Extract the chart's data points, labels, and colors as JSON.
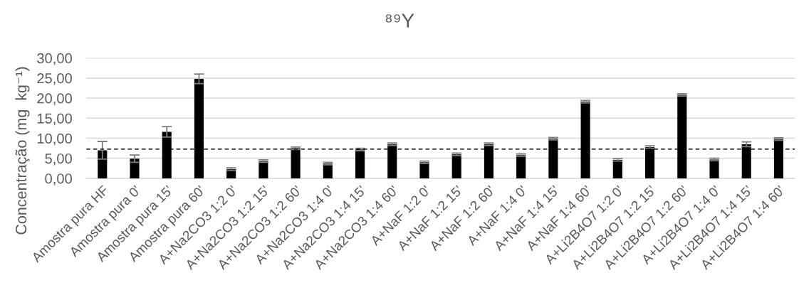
{
  "chart_data": {
    "type": "bar",
    "title": "⁸⁹Y",
    "ylabel": "Concentração (mg  kg⁻¹)",
    "categories": [
      "Amostra pura HF",
      "Amostra pura 0'",
      "Amostra pura 15'",
      "Amostra pura 60'",
      "A+Na2CO3 1:2 0'",
      "A+Na2CO3 1:2 15'",
      "A+Na2CO3 1:2 60'",
      "A+Na2CO3 1:4 0'",
      "A+Na2CO3 1:4 15'",
      "A+Na2CO3 1:4 60'",
      "A+NaF 1:2 0'",
      "A+NaF 1:2 15'",
      "A+NaF 1:2 60'",
      "A+NaF 1:4 0'",
      "A+NaF 1:4 15'",
      "A+NaF 1:4 60'",
      "A+Li2B4O7 1:2 0'",
      "A+Li2B4O7 1:2 15'",
      "A+Li2B4O7 1:2 60'",
      "A+Li2B4O7 1:4 0'",
      "A+Li2B4O7 1:4 15'",
      "A+Li2B4O7 1:4 60'"
    ],
    "values": [
      7.0,
      4.9,
      11.6,
      24.8,
      2.3,
      4.3,
      7.5,
      3.7,
      7.2,
      8.5,
      4.0,
      6.0,
      8.5,
      5.8,
      9.9,
      19.1,
      4.6,
      7.8,
      20.8,
      4.7,
      8.5,
      9.8
    ],
    "errors": [
      2.2,
      0.9,
      1.3,
      1.2,
      0.3,
      0.3,
      0.3,
      0.3,
      0.3,
      0.3,
      0.3,
      0.3,
      0.3,
      0.3,
      0.3,
      0.3,
      0.3,
      0.3,
      0.3,
      0.3,
      0.6,
      0.3
    ],
    "color": "#000000",
    "ylim": [
      0,
      30
    ],
    "yticks": [
      {
        "value": 0,
        "label": "0,00"
      },
      {
        "value": 5,
        "label": "5,00"
      },
      {
        "value": 10,
        "label": "10,00"
      },
      {
        "value": 15,
        "label": "15,00"
      },
      {
        "value": 20,
        "label": "20,00"
      },
      {
        "value": 25,
        "label": "25,00"
      },
      {
        "value": 30,
        "label": "30,00"
      }
    ],
    "grid": "y",
    "ref_lines": [
      {
        "axis": "y",
        "value": 7.3,
        "color": "#000000",
        "line_style": "dashed"
      }
    ]
  }
}
